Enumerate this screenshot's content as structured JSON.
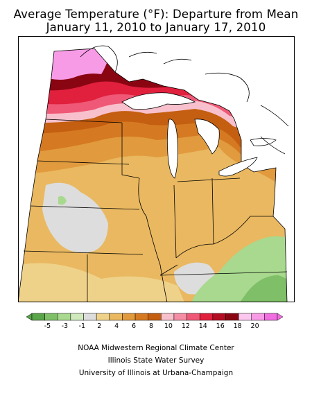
{
  "title": {
    "line1": "Average Temperature (°F): Departure from Mean",
    "line2": "January 11, 2010 to January 17, 2010"
  },
  "legend": {
    "labels": [
      "-5",
      "-3",
      "-1",
      "2",
      "4",
      "6",
      "8",
      "10",
      "12",
      "14",
      "16",
      "18",
      "20"
    ],
    "colors": [
      "#5aa44a",
      "#7fbf68",
      "#a8d98e",
      "#cfe9bd",
      "#dddddd",
      "#efd28a",
      "#e9b860",
      "#e19b3e",
      "#d57a22",
      "#c45e10",
      "#f7c0cc",
      "#f58ea5",
      "#ef5876",
      "#e0203d",
      "#b40c22",
      "#8a0512",
      "#fbc7ee",
      "#f89be7",
      "#f06ee0"
    ]
  },
  "credits": {
    "line1": "NOAA Midwestern Regional Climate Center",
    "line2": "Illinois State Water Survey",
    "line3": "University of Illinois at Urbana-Champaign"
  }
}
